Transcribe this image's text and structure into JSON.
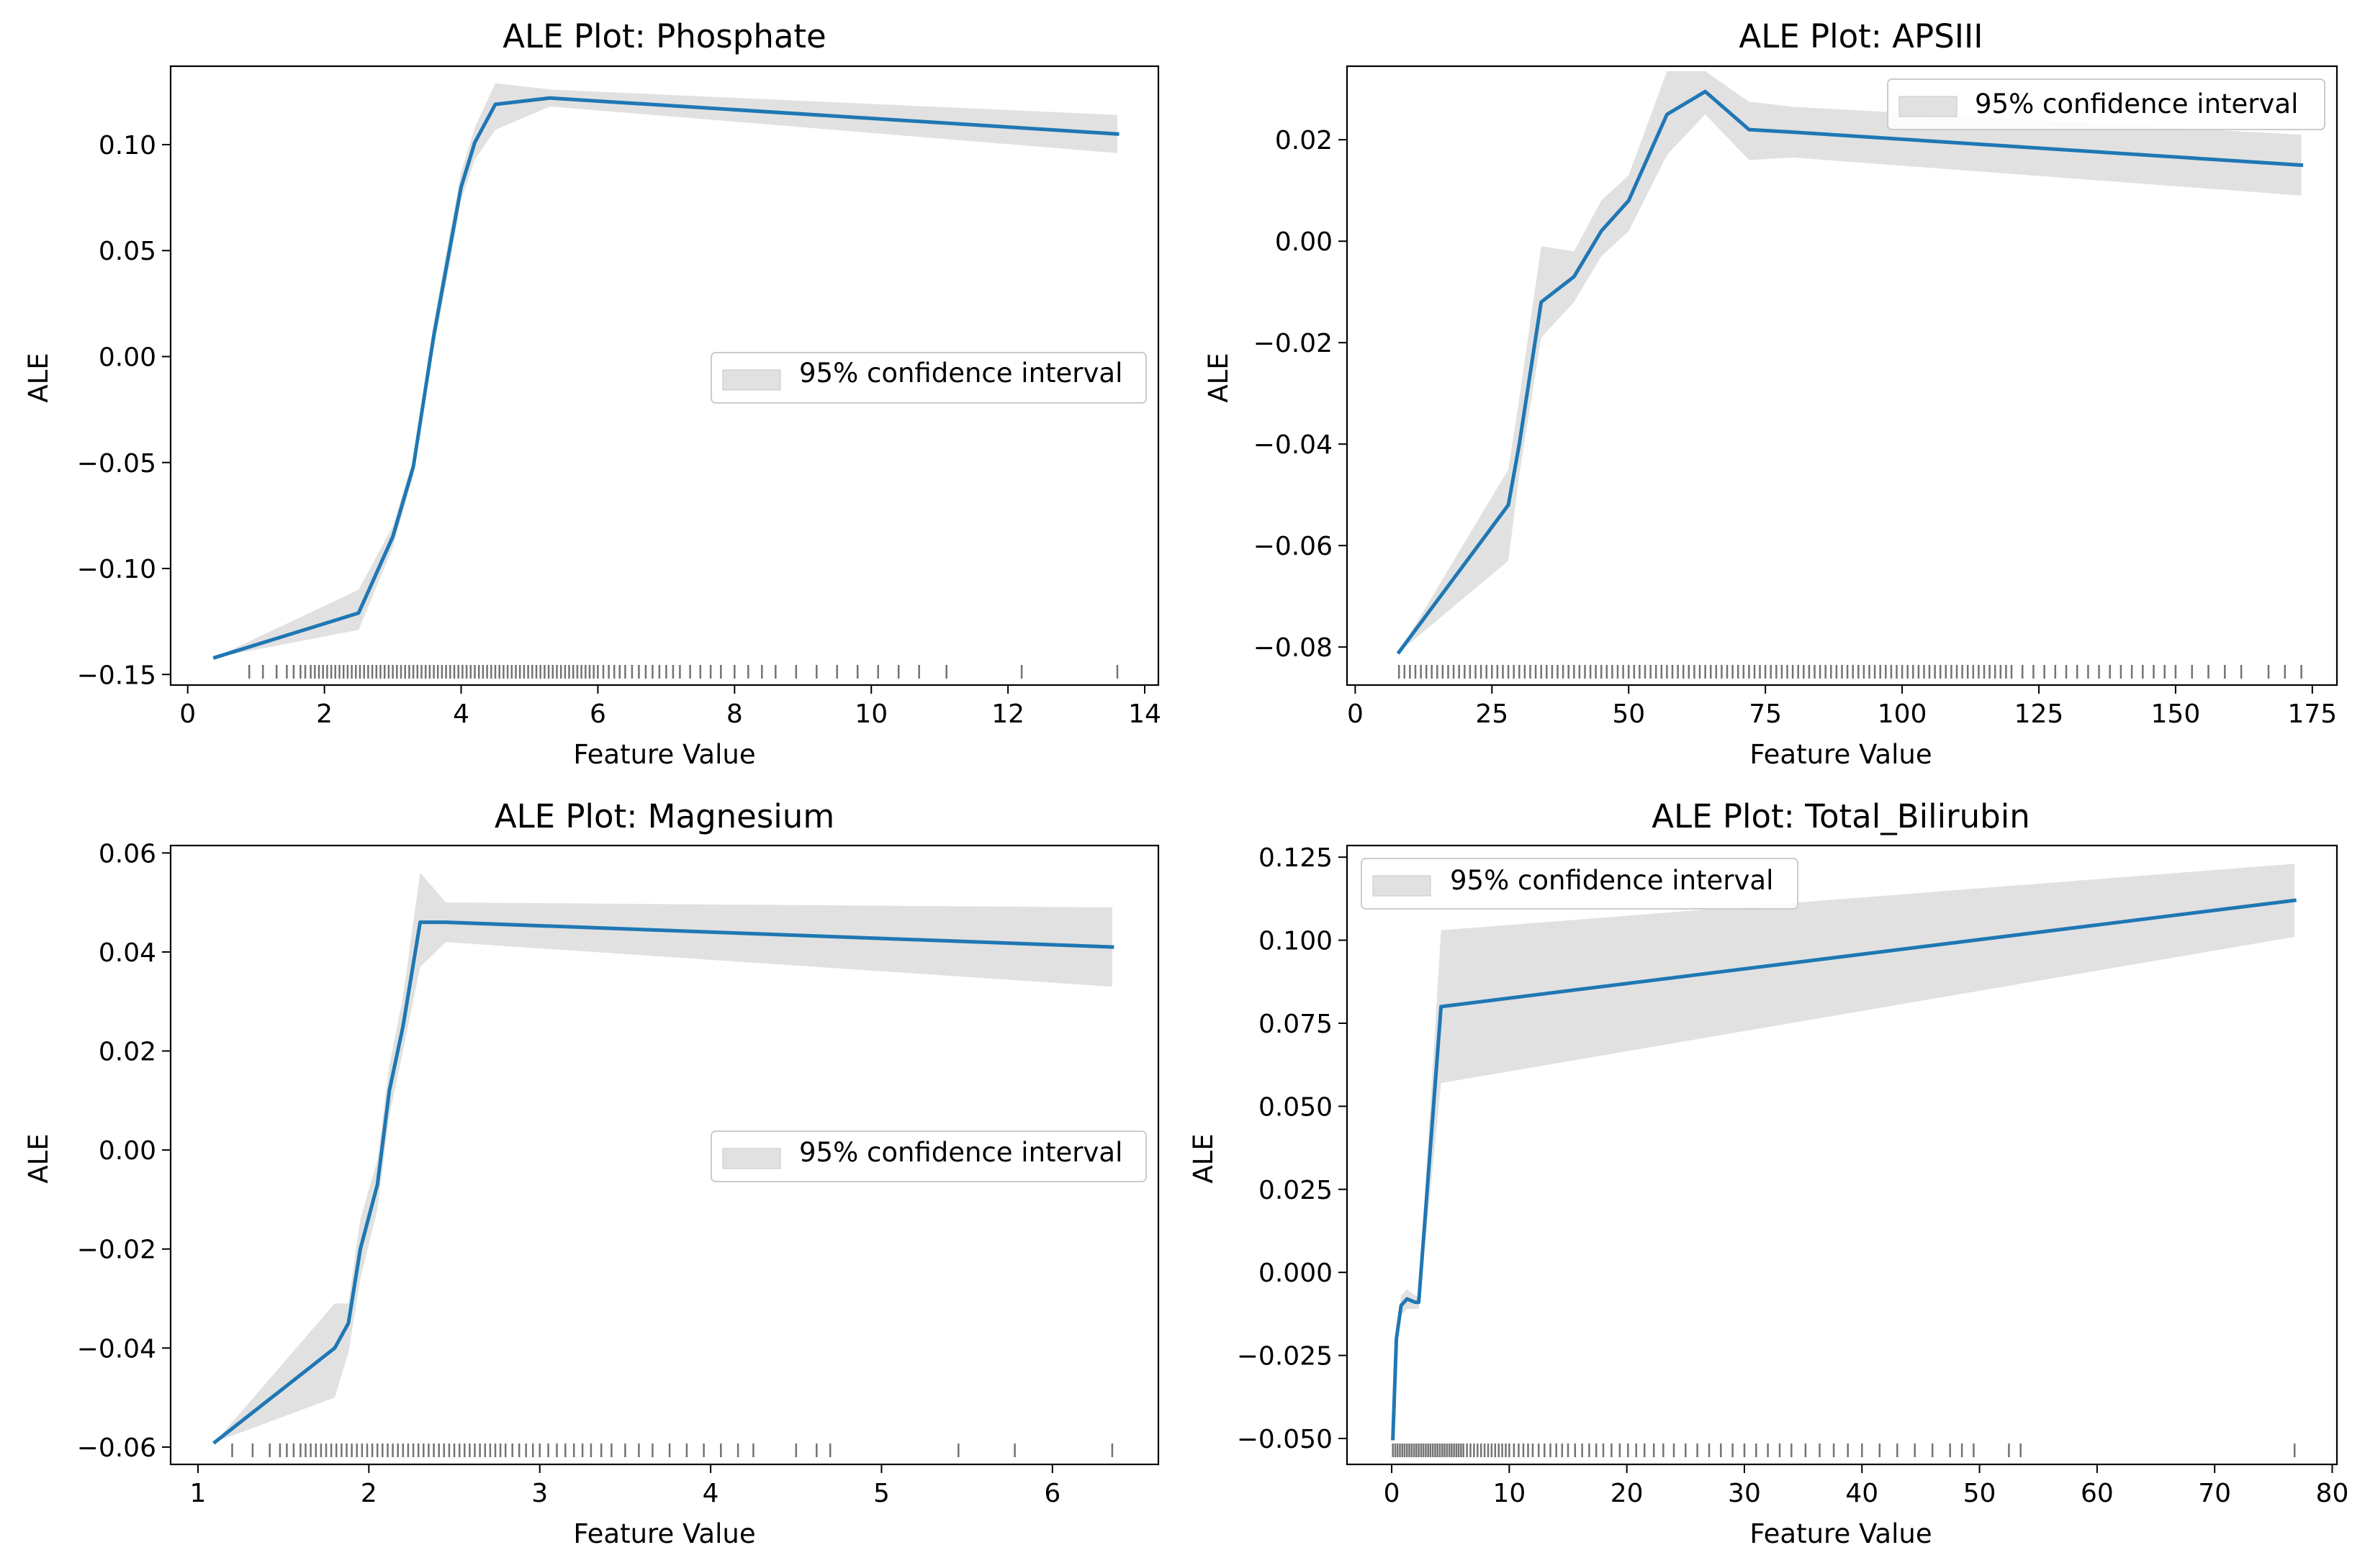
{
  "figure": {
    "background": "#ffffff"
  },
  "colors": {
    "line": "#1f77b4",
    "band": "#d9d9d9",
    "rug": "#000000",
    "axis": "#000000",
    "legend_edge": "#cccccc"
  },
  "chart_data": [
    {
      "type": "line",
      "title": "ALE Plot: Phosphate",
      "xlabel": "Feature Value",
      "ylabel": "ALE",
      "xlim": [
        -0.25,
        14.2
      ],
      "ylim": [
        -0.155,
        0.137
      ],
      "xticks": [
        0,
        2,
        4,
        6,
        8,
        10,
        12,
        14
      ],
      "yticks": [
        -0.15,
        -0.1,
        -0.05,
        0.0,
        0.05,
        0.1
      ],
      "ytick_labels": [
        "−0.15",
        "−0.10",
        "−0.05",
        "0.00",
        "0.05",
        "0.10"
      ],
      "xtick_labels": [
        "0",
        "2",
        "4",
        "6",
        "8",
        "10",
        "12",
        "14"
      ],
      "legend": {
        "label": "95% confidence interval",
        "loc": "center-right"
      },
      "series": [
        {
          "name": "ALE",
          "x": [
            0.4,
            2.5,
            3.0,
            3.3,
            3.6,
            3.8,
            4.0,
            4.2,
            4.5,
            5.3,
            13.6
          ],
          "y": [
            -0.142,
            -0.121,
            -0.085,
            -0.052,
            0.01,
            0.045,
            0.08,
            0.101,
            0.119,
            0.122,
            0.105
          ],
          "ci_lower": [
            -0.142,
            -0.129,
            -0.09,
            -0.056,
            0.004,
            0.038,
            0.074,
            0.093,
            0.107,
            0.118,
            0.096
          ],
          "ci_upper": [
            -0.142,
            -0.11,
            -0.08,
            -0.048,
            0.016,
            0.052,
            0.087,
            0.108,
            0.129,
            0.126,
            0.114
          ]
        }
      ],
      "rug": [
        0.9,
        1.1,
        1.3,
        1.45,
        1.55,
        1.65,
        1.72,
        1.8,
        1.86,
        1.92,
        1.98,
        2.04,
        2.1,
        2.16,
        2.22,
        2.28,
        2.34,
        2.4,
        2.46,
        2.52,
        2.58,
        2.64,
        2.7,
        2.76,
        2.82,
        2.88,
        2.94,
        3.0,
        3.06,
        3.12,
        3.18,
        3.24,
        3.3,
        3.36,
        3.42,
        3.48,
        3.54,
        3.6,
        3.66,
        3.72,
        3.78,
        3.84,
        3.9,
        3.96,
        4.02,
        4.08,
        4.14,
        4.2,
        4.26,
        4.32,
        4.38,
        4.44,
        4.5,
        4.56,
        4.62,
        4.68,
        4.74,
        4.8,
        4.86,
        4.92,
        4.98,
        5.04,
        5.1,
        5.16,
        5.22,
        5.28,
        5.34,
        5.4,
        5.46,
        5.52,
        5.58,
        5.64,
        5.7,
        5.76,
        5.82,
        5.88,
        5.94,
        6.0,
        6.08,
        6.16,
        6.24,
        6.32,
        6.4,
        6.5,
        6.6,
        6.7,
        6.8,
        6.9,
        7.0,
        7.1,
        7.2,
        7.35,
        7.5,
        7.65,
        7.8,
        8.0,
        8.2,
        8.4,
        8.6,
        8.9,
        9.2,
        9.5,
        9.8,
        10.1,
        10.4,
        10.7,
        11.1,
        12.2,
        13.6
      ]
    },
    {
      "type": "line",
      "title": "ALE Plot: APSIII",
      "xlabel": "Feature Value",
      "ylabel": "ALE",
      "xlim": [
        -1.5,
        179.5
      ],
      "ylim": [
        -0.0875,
        0.0345
      ],
      "xticks": [
        0,
        25,
        50,
        75,
        100,
        125,
        150,
        175
      ],
      "yticks": [
        -0.08,
        -0.06,
        -0.04,
        -0.02,
        0.0,
        0.02
      ],
      "ytick_labels": [
        "−0.08",
        "−0.06",
        "−0.04",
        "−0.02",
        "0.00",
        "0.02"
      ],
      "xtick_labels": [
        "0",
        "25",
        "50",
        "75",
        "100",
        "125",
        "150",
        "175"
      ],
      "legend": {
        "label": "95% confidence interval",
        "loc": "top-right"
      },
      "series": [
        {
          "name": "ALE",
          "x": [
            8,
            28,
            30,
            34,
            40,
            45,
            50,
            57,
            64,
            72,
            80,
            173
          ],
          "y": [
            -0.081,
            -0.052,
            -0.04,
            -0.012,
            -0.007,
            0.002,
            0.008,
            0.025,
            0.0295,
            0.022,
            0.0215,
            0.015
          ],
          "ci_lower": [
            -0.081,
            -0.063,
            -0.046,
            -0.019,
            -0.012,
            -0.003,
            0.002,
            0.017,
            0.025,
            0.016,
            0.0165,
            0.009
          ],
          "ci_upper": [
            -0.081,
            -0.045,
            -0.031,
            -0.001,
            -0.002,
            0.008,
            0.013,
            0.0335,
            0.0335,
            0.0275,
            0.0265,
            0.021
          ]
        }
      ],
      "rug": [
        8,
        9,
        10,
        11,
        12,
        13,
        14,
        15,
        16,
        17,
        18,
        19,
        20,
        21,
        22,
        23,
        24,
        25,
        26,
        27,
        28,
        29,
        30,
        31,
        32,
        33,
        34,
        35,
        36,
        37,
        38,
        39,
        40,
        41,
        42,
        43,
        44,
        45,
        46,
        47,
        48,
        49,
        50,
        51,
        52,
        53,
        54,
        55,
        56,
        57,
        58,
        59,
        60,
        61,
        62,
        63,
        64,
        65,
        66,
        67,
        68,
        69,
        70,
        71,
        72,
        73,
        74,
        75,
        76,
        77,
        78,
        79,
        80,
        81,
        82,
        83,
        84,
        85,
        86,
        87,
        88,
        89,
        90,
        91,
        92,
        93,
        94,
        95,
        96,
        97,
        98,
        99,
        100,
        101,
        102,
        103,
        104,
        105,
        106,
        107,
        108,
        109,
        110,
        111,
        112,
        113,
        114,
        115,
        116,
        117,
        118,
        119,
        120,
        122,
        124,
        126,
        128,
        130,
        132,
        134,
        136,
        138,
        140,
        142,
        144,
        146,
        148,
        150,
        153,
        156,
        159,
        162,
        167,
        170,
        173
      ]
    },
    {
      "type": "line",
      "title": "ALE Plot: Magnesium",
      "xlabel": "Feature Value",
      "ylabel": "ALE",
      "xlim": [
        0.84,
        6.62
      ],
      "ylim": [
        -0.0635,
        0.0615
      ],
      "xticks": [
        1,
        2,
        3,
        4,
        5,
        6
      ],
      "yticks": [
        -0.06,
        -0.04,
        -0.02,
        0.0,
        0.02,
        0.04,
        0.06
      ],
      "ytick_labels": [
        "−0.06",
        "−0.04",
        "−0.02",
        "0.00",
        "0.02",
        "0.04",
        "0.06"
      ],
      "xtick_labels": [
        "1",
        "2",
        "3",
        "4",
        "5",
        "6"
      ],
      "legend": {
        "label": "95% confidence interval",
        "loc": "center-right"
      },
      "series": [
        {
          "name": "ALE",
          "x": [
            1.1,
            1.8,
            1.88,
            1.95,
            2.05,
            2.12,
            2.2,
            2.3,
            2.45,
            6.35
          ],
          "y": [
            -0.059,
            -0.04,
            -0.035,
            -0.02,
            -0.007,
            0.012,
            0.025,
            0.046,
            0.046,
            0.041
          ],
          "ci_lower": [
            -0.059,
            -0.05,
            -0.041,
            -0.026,
            -0.012,
            0.007,
            0.02,
            0.037,
            0.042,
            0.033
          ],
          "ci_upper": [
            -0.059,
            -0.031,
            -0.031,
            -0.014,
            -0.002,
            0.017,
            0.031,
            0.056,
            0.05,
            0.049
          ]
        }
      ],
      "rug": [
        1.2,
        1.32,
        1.42,
        1.48,
        1.52,
        1.56,
        1.6,
        1.63,
        1.66,
        1.69,
        1.72,
        1.75,
        1.78,
        1.81,
        1.84,
        1.87,
        1.9,
        1.93,
        1.96,
        1.99,
        2.02,
        2.05,
        2.08,
        2.11,
        2.14,
        2.17,
        2.2,
        2.23,
        2.26,
        2.29,
        2.32,
        2.35,
        2.38,
        2.41,
        2.44,
        2.47,
        2.5,
        2.53,
        2.56,
        2.59,
        2.62,
        2.65,
        2.68,
        2.71,
        2.74,
        2.77,
        2.8,
        2.84,
        2.88,
        2.92,
        2.96,
        3.0,
        3.05,
        3.1,
        3.15,
        3.2,
        3.25,
        3.3,
        3.36,
        3.42,
        3.5,
        3.58,
        3.66,
        3.76,
        3.86,
        3.96,
        4.06,
        4.16,
        4.25,
        4.5,
        4.62,
        4.7,
        5.45,
        5.78,
        6.35
      ]
    },
    {
      "type": "line",
      "title": "ALE Plot: Total_Bilirubin",
      "xlabel": "Feature Value",
      "ylabel": "ALE",
      "xlim": [
        -3.8,
        80.4
      ],
      "ylim": [
        -0.0578,
        0.1285
      ],
      "xticks": [
        0,
        10,
        20,
        30,
        40,
        50,
        60,
        70,
        80
      ],
      "yticks": [
        -0.05,
        -0.025,
        0.0,
        0.025,
        0.05,
        0.075,
        0.1,
        0.125
      ],
      "ytick_labels": [
        "−0.050",
        "−0.025",
        "0.000",
        "0.025",
        "0.050",
        "0.075",
        "0.100",
        "0.125"
      ],
      "xtick_labels": [
        "0",
        "10",
        "20",
        "30",
        "40",
        "50",
        "60",
        "70",
        "80"
      ],
      "legend": {
        "label": "95% confidence interval",
        "loc": "top-left"
      },
      "series": [
        {
          "name": "ALE",
          "x": [
            0.1,
            0.4,
            0.8,
            1.3,
            2.0,
            2.3,
            4.2,
            76.8
          ],
          "y": [
            -0.05,
            -0.02,
            -0.01,
            -0.008,
            -0.009,
            -0.009,
            0.08,
            0.112
          ],
          "ci_lower": [
            -0.05,
            -0.024,
            -0.013,
            -0.011,
            -0.011,
            -0.011,
            0.057,
            0.101
          ],
          "ci_upper": [
            -0.05,
            -0.017,
            -0.007,
            -0.005,
            -0.007,
            -0.007,
            0.103,
            0.123
          ]
        }
      ],
      "rug": [
        0.1,
        0.3,
        0.5,
        0.7,
        0.9,
        1.1,
        1.3,
        1.5,
        1.7,
        1.9,
        2.1,
        2.3,
        2.5,
        2.7,
        2.9,
        3.1,
        3.3,
        3.5,
        3.7,
        3.9,
        4.1,
        4.3,
        4.5,
        4.7,
        4.9,
        5.1,
        5.3,
        5.5,
        5.7,
        5.9,
        6.1,
        6.4,
        6.7,
        7.0,
        7.3,
        7.6,
        7.9,
        8.2,
        8.5,
        8.8,
        9.1,
        9.4,
        9.7,
        10.0,
        10.4,
        10.8,
        11.2,
        11.6,
        12.0,
        12.5,
        13.0,
        13.5,
        14.0,
        14.5,
        15.0,
        15.6,
        16.2,
        16.8,
        17.4,
        18.0,
        18.7,
        19.4,
        20.1,
        20.8,
        21.5,
        22.3,
        23.1,
        24.0,
        25.0,
        26.0,
        27.0,
        28.0,
        29.0,
        30.0,
        31.0,
        32.0,
        33.0,
        34.0,
        35.2,
        36.4,
        37.6,
        38.8,
        40.0,
        41.5,
        43.0,
        44.5,
        46.0,
        47.5,
        48.5,
        49.5,
        52.5,
        53.5,
        76.8
      ]
    }
  ]
}
